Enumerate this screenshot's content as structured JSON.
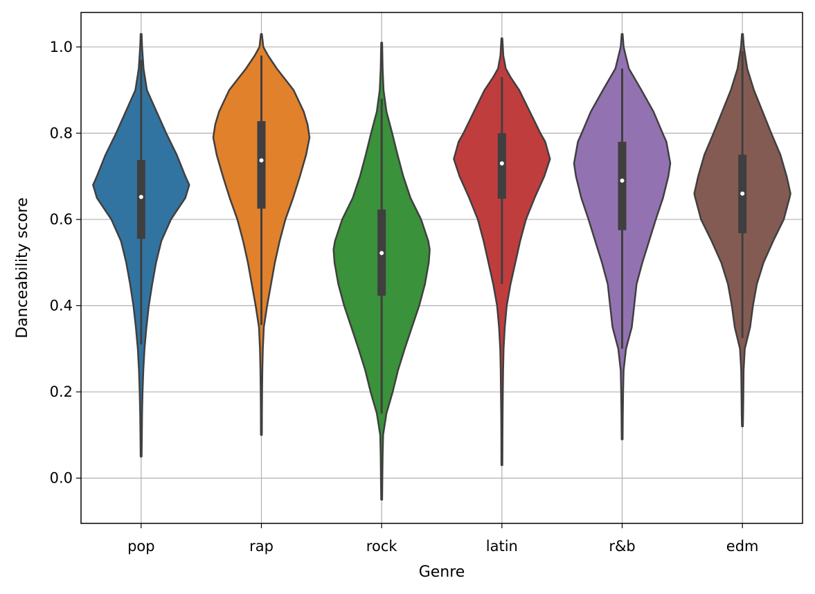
{
  "chart_data": {
    "type": "violin",
    "xlabel": "Genre",
    "ylabel": "Danceability score",
    "ylim": [
      -0.105,
      1.08
    ],
    "yticks": [
      0.0,
      0.2,
      0.4,
      0.6,
      0.8,
      1.0
    ],
    "ytick_labels": [
      "0.0",
      "0.2",
      "0.4",
      "0.6",
      "0.8",
      "1.0"
    ],
    "grid": true,
    "categories": [
      "pop",
      "rap",
      "rock",
      "latin",
      "r&b",
      "edm"
    ],
    "violins": [
      {
        "category": "pop",
        "color": "#3274a1",
        "extent": [
          0.05,
          1.03
        ],
        "q1": 0.555,
        "median": 0.652,
        "q3": 0.738,
        "whisker": [
          0.31,
          0.97
        ],
        "profile": [
          [
            0.05,
            0.01
          ],
          [
            0.1,
            0.015
          ],
          [
            0.15,
            0.02
          ],
          [
            0.2,
            0.03
          ],
          [
            0.25,
            0.045
          ],
          [
            0.3,
            0.07
          ],
          [
            0.35,
            0.11
          ],
          [
            0.4,
            0.16
          ],
          [
            0.45,
            0.23
          ],
          [
            0.5,
            0.31
          ],
          [
            0.55,
            0.42
          ],
          [
            0.6,
            0.62
          ],
          [
            0.65,
            0.92
          ],
          [
            0.68,
            1.0
          ],
          [
            0.7,
            0.92
          ],
          [
            0.75,
            0.74
          ],
          [
            0.8,
            0.52
          ],
          [
            0.85,
            0.32
          ],
          [
            0.9,
            0.12
          ],
          [
            0.95,
            0.05
          ],
          [
            1.0,
            0.02
          ],
          [
            1.03,
            0.01
          ]
        ]
      },
      {
        "category": "rap",
        "color": "#e1812c",
        "extent": [
          0.1,
          1.03
        ],
        "q1": 0.625,
        "median": 0.737,
        "q3": 0.828,
        "whisker": [
          0.355,
          0.98
        ],
        "profile": [
          [
            0.1,
            0.01
          ],
          [
            0.15,
            0.012
          ],
          [
            0.2,
            0.015
          ],
          [
            0.25,
            0.02
          ],
          [
            0.3,
            0.03
          ],
          [
            0.35,
            0.05
          ],
          [
            0.4,
            0.12
          ],
          [
            0.45,
            0.2
          ],
          [
            0.5,
            0.28
          ],
          [
            0.55,
            0.38
          ],
          [
            0.6,
            0.5
          ],
          [
            0.65,
            0.66
          ],
          [
            0.7,
            0.8
          ],
          [
            0.75,
            0.93
          ],
          [
            0.79,
            1.0
          ],
          [
            0.82,
            0.96
          ],
          [
            0.85,
            0.88
          ],
          [
            0.9,
            0.67
          ],
          [
            0.95,
            0.32
          ],
          [
            0.98,
            0.14
          ],
          [
            1.0,
            0.04
          ],
          [
            1.03,
            0.01
          ]
        ]
      },
      {
        "category": "rock",
        "color": "#3a923a",
        "extent": [
          -0.05,
          1.01
        ],
        "q1": 0.423,
        "median": 0.522,
        "q3": 0.623,
        "whisker": [
          0.15,
          0.88
        ],
        "profile": [
          [
            -0.05,
            0.01
          ],
          [
            0.0,
            0.015
          ],
          [
            0.05,
            0.02
          ],
          [
            0.1,
            0.03
          ],
          [
            0.15,
            0.1
          ],
          [
            0.2,
            0.23
          ],
          [
            0.25,
            0.34
          ],
          [
            0.3,
            0.48
          ],
          [
            0.35,
            0.63
          ],
          [
            0.4,
            0.78
          ],
          [
            0.45,
            0.9
          ],
          [
            0.5,
            0.98
          ],
          [
            0.53,
            1.0
          ],
          [
            0.55,
            0.97
          ],
          [
            0.6,
            0.82
          ],
          [
            0.65,
            0.6
          ],
          [
            0.7,
            0.45
          ],
          [
            0.75,
            0.33
          ],
          [
            0.8,
            0.22
          ],
          [
            0.85,
            0.1
          ],
          [
            0.9,
            0.04
          ],
          [
            0.95,
            0.02
          ],
          [
            1.01,
            0.01
          ]
        ]
      },
      {
        "category": "latin",
        "color": "#c03d3e",
        "extent": [
          0.03,
          1.02
        ],
        "q1": 0.648,
        "median": 0.73,
        "q3": 0.8,
        "whisker": [
          0.45,
          0.93
        ],
        "profile": [
          [
            0.03,
            0.01
          ],
          [
            0.1,
            0.012
          ],
          [
            0.15,
            0.015
          ],
          [
            0.2,
            0.02
          ],
          [
            0.25,
            0.025
          ],
          [
            0.3,
            0.035
          ],
          [
            0.35,
            0.06
          ],
          [
            0.4,
            0.1
          ],
          [
            0.45,
            0.18
          ],
          [
            0.5,
            0.28
          ],
          [
            0.55,
            0.38
          ],
          [
            0.6,
            0.5
          ],
          [
            0.65,
            0.68
          ],
          [
            0.7,
            0.88
          ],
          [
            0.74,
            1.0
          ],
          [
            0.78,
            0.9
          ],
          [
            0.8,
            0.8
          ],
          [
            0.85,
            0.58
          ],
          [
            0.9,
            0.36
          ],
          [
            0.93,
            0.18
          ],
          [
            0.95,
            0.08
          ],
          [
            0.98,
            0.03
          ],
          [
            1.02,
            0.01
          ]
        ]
      },
      {
        "category": "r&b",
        "color": "#9372b2",
        "extent": [
          0.09,
          1.03
        ],
        "q1": 0.575,
        "median": 0.69,
        "q3": 0.78,
        "whisker": [
          0.3,
          0.95
        ],
        "profile": [
          [
            0.09,
            0.01
          ],
          [
            0.15,
            0.015
          ],
          [
            0.2,
            0.02
          ],
          [
            0.25,
            0.03
          ],
          [
            0.3,
            0.08
          ],
          [
            0.35,
            0.2
          ],
          [
            0.4,
            0.25
          ],
          [
            0.45,
            0.3
          ],
          [
            0.5,
            0.42
          ],
          [
            0.55,
            0.56
          ],
          [
            0.6,
            0.7
          ],
          [
            0.65,
            0.85
          ],
          [
            0.7,
            0.96
          ],
          [
            0.73,
            1.0
          ],
          [
            0.78,
            0.92
          ],
          [
            0.8,
            0.84
          ],
          [
            0.85,
            0.65
          ],
          [
            0.9,
            0.4
          ],
          [
            0.95,
            0.14
          ],
          [
            1.0,
            0.03
          ],
          [
            1.03,
            0.01
          ]
        ]
      },
      {
        "category": "edm",
        "color": "#845b53",
        "extent": [
          0.12,
          1.03
        ],
        "q1": 0.568,
        "median": 0.66,
        "q3": 0.75,
        "whisker": [
          0.325,
          0.99
        ],
        "profile": [
          [
            0.12,
            0.01
          ],
          [
            0.15,
            0.015
          ],
          [
            0.2,
            0.02
          ],
          [
            0.25,
            0.025
          ],
          [
            0.3,
            0.05
          ],
          [
            0.35,
            0.16
          ],
          [
            0.4,
            0.22
          ],
          [
            0.45,
            0.3
          ],
          [
            0.5,
            0.44
          ],
          [
            0.55,
            0.64
          ],
          [
            0.6,
            0.86
          ],
          [
            0.65,
            0.98
          ],
          [
            0.66,
            1.0
          ],
          [
            0.7,
            0.92
          ],
          [
            0.75,
            0.79
          ],
          [
            0.8,
            0.6
          ],
          [
            0.85,
            0.42
          ],
          [
            0.9,
            0.24
          ],
          [
            0.95,
            0.1
          ],
          [
            1.0,
            0.03
          ],
          [
            1.03,
            0.01
          ]
        ]
      }
    ]
  }
}
